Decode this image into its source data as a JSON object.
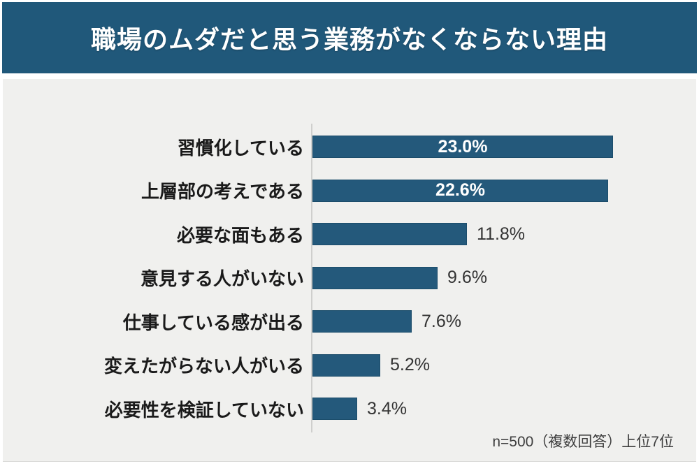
{
  "header": {
    "title": "職場のムダだと思う業務がなくならない理由"
  },
  "footer": {
    "note": "n=500（複数回答）上位7位"
  },
  "colors": {
    "accent": "#20587a",
    "bar_fill": "#24597b",
    "bar_border": "#1c4d6b",
    "panel_bg": "#f0f0ee",
    "axis_line": "#cfcfcd",
    "title_text": "#ffffff",
    "category_text": "#1a1a1a",
    "value_text_outside": "#333333",
    "value_text_inside": "#ffffff"
  },
  "chart_data": {
    "type": "bar",
    "orientation": "horizontal",
    "title": "職場のムダだと思う業務がなくならない理由",
    "note": "n=500（複数回答）上位7位",
    "categories": [
      "習慣化している",
      "上層部の考えである",
      "必要な面もある",
      "意見する人がいない",
      "仕事している感が出る",
      "変えたがらない人がいる",
      "必要性を検証していない"
    ],
    "values": [
      23.0,
      22.6,
      11.8,
      9.6,
      7.6,
      5.2,
      3.4
    ],
    "value_labels": [
      "23.0%",
      "22.6%",
      "11.8%",
      "9.6%",
      "7.6%",
      "5.2%",
      "3.4%"
    ],
    "unit": "%",
    "xlabel": "",
    "ylabel": "",
    "xlim": [
      0,
      24
    ],
    "grid": false,
    "legend": false,
    "value_label_inside_threshold": 20
  }
}
